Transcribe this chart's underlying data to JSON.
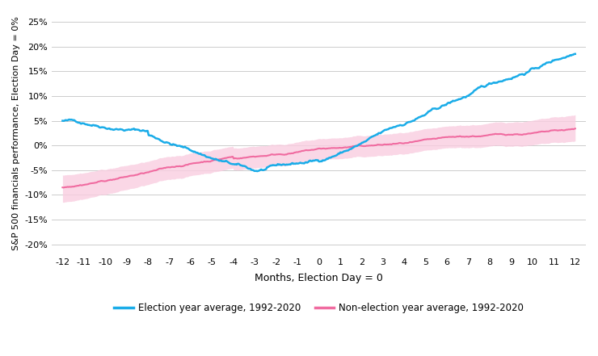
{
  "title": "",
  "xlabel": "Months, Election Day = 0",
  "ylabel": "S&P 500 financials performance, Election Day = 0%",
  "x_ticks": [
    -12,
    -11,
    -10,
    -9,
    -8,
    -7,
    -6,
    -5,
    -4,
    -3,
    -2,
    -1,
    0,
    1,
    2,
    3,
    4,
    5,
    6,
    7,
    8,
    9,
    10,
    11,
    12
  ],
  "ylim": [
    -0.22,
    0.27
  ],
  "yticks": [
    -0.2,
    -0.15,
    -0.1,
    -0.05,
    0.0,
    0.05,
    0.1,
    0.15,
    0.2,
    0.25
  ],
  "election_color": "#1AACE8",
  "nonelection_color": "#F06BA0",
  "nonelection_band_color": "#F9CEE0",
  "legend_election": "Election year average, 1992-2020",
  "legend_nonelection": "Non-election year average, 1992-2020",
  "background_color": "#FFFFFF",
  "grid_color": "#CCCCCC",
  "seed": 42
}
